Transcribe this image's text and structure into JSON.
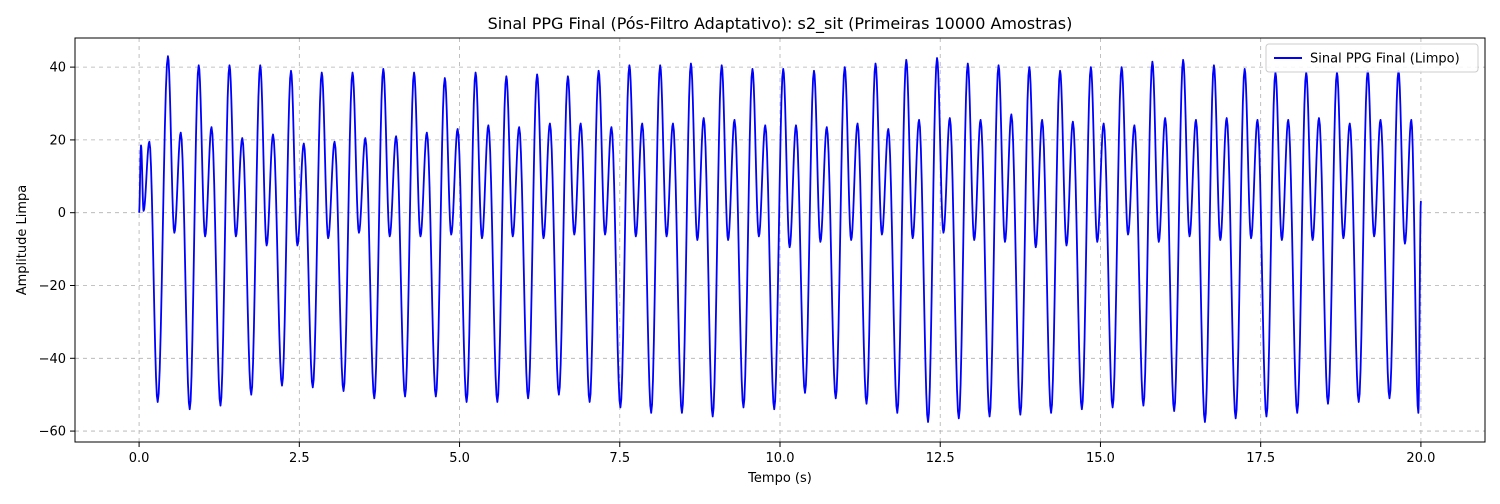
{
  "chart_data": {
    "type": "line",
    "title": "Sinal PPG Final (Pós-Filtro Adaptativo): s2_sit (Primeiras 10000 Amostras)",
    "xlabel": "Tempo (s)",
    "ylabel": "Amplitude Limpa",
    "xlim": [
      -1.0,
      21.0
    ],
    "ylim": [
      -63,
      48
    ],
    "grid": true,
    "legend_position": "top-right",
    "xticks": [
      0.0,
      2.5,
      5.0,
      7.5,
      10.0,
      12.5,
      15.0,
      17.5,
      20.0
    ],
    "xtick_labels": [
      "0.0",
      "2.5",
      "5.0",
      "7.5",
      "10.0",
      "12.5",
      "15.0",
      "17.5",
      "20.0"
    ],
    "yticks": [
      -60,
      -40,
      -20,
      0,
      20,
      40
    ],
    "ytick_labels": [
      "−60",
      "−40",
      "−20",
      "0",
      "20",
      "40"
    ],
    "series": [
      {
        "name": "Sinal PPG Final (Limpo)",
        "color": "#0000ff",
        "x_start": 0.0,
        "x_end": 20.0,
        "peaks": [
          {
            "t": 0.03,
            "v": 18.5
          },
          {
            "t": 0.16,
            "v": 19.5
          },
          {
            "t": 0.45,
            "v": 43.0
          },
          {
            "t": 0.65,
            "v": 22.0
          },
          {
            "t": 0.93,
            "v": 40.5
          },
          {
            "t": 1.13,
            "v": 23.5
          },
          {
            "t": 1.41,
            "v": 40.5
          },
          {
            "t": 1.61,
            "v": 20.5
          },
          {
            "t": 1.89,
            "v": 40.5
          },
          {
            "t": 2.09,
            "v": 21.5
          },
          {
            "t": 2.37,
            "v": 39.0
          },
          {
            "t": 2.57,
            "v": 19.0
          },
          {
            "t": 2.85,
            "v": 38.5
          },
          {
            "t": 3.05,
            "v": 19.5
          },
          {
            "t": 3.33,
            "v": 38.5
          },
          {
            "t": 3.53,
            "v": 20.5
          },
          {
            "t": 3.81,
            "v": 39.5
          },
          {
            "t": 4.01,
            "v": 21.0
          },
          {
            "t": 4.29,
            "v": 38.5
          },
          {
            "t": 4.49,
            "v": 22.0
          },
          {
            "t": 4.77,
            "v": 37.0
          },
          {
            "t": 4.97,
            "v": 23.0
          },
          {
            "t": 5.25,
            "v": 38.5
          },
          {
            "t": 5.45,
            "v": 24.0
          },
          {
            "t": 5.73,
            "v": 37.5
          },
          {
            "t": 5.93,
            "v": 23.5
          },
          {
            "t": 6.21,
            "v": 38.0
          },
          {
            "t": 6.41,
            "v": 24.5
          },
          {
            "t": 6.69,
            "v": 37.5
          },
          {
            "t": 6.89,
            "v": 24.5
          },
          {
            "t": 7.17,
            "v": 39.0
          },
          {
            "t": 7.37,
            "v": 23.5
          },
          {
            "t": 7.65,
            "v": 40.5
          },
          {
            "t": 7.85,
            "v": 24.5
          },
          {
            "t": 8.13,
            "v": 40.5
          },
          {
            "t": 8.33,
            "v": 24.5
          },
          {
            "t": 8.61,
            "v": 41.0
          },
          {
            "t": 8.81,
            "v": 26.0
          },
          {
            "t": 9.09,
            "v": 40.5
          },
          {
            "t": 9.29,
            "v": 25.5
          },
          {
            "t": 9.57,
            "v": 39.5
          },
          {
            "t": 9.77,
            "v": 24.0
          },
          {
            "t": 10.05,
            "v": 39.5
          },
          {
            "t": 10.25,
            "v": 24.0
          },
          {
            "t": 10.53,
            "v": 39.0
          },
          {
            "t": 10.73,
            "v": 23.5
          },
          {
            "t": 11.01,
            "v": 40.0
          },
          {
            "t": 11.21,
            "v": 24.5
          },
          {
            "t": 11.49,
            "v": 41.0
          },
          {
            "t": 11.69,
            "v": 23.0
          },
          {
            "t": 11.97,
            "v": 42.0
          },
          {
            "t": 12.17,
            "v": 25.5
          },
          {
            "t": 12.45,
            "v": 42.5
          },
          {
            "t": 12.65,
            "v": 26.0
          },
          {
            "t": 12.93,
            "v": 41.0
          },
          {
            "t": 13.13,
            "v": 25.5
          },
          {
            "t": 13.41,
            "v": 40.5
          },
          {
            "t": 13.61,
            "v": 27.0
          },
          {
            "t": 13.89,
            "v": 40.0
          },
          {
            "t": 14.09,
            "v": 25.5
          },
          {
            "t": 14.37,
            "v": 39.0
          },
          {
            "t": 14.57,
            "v": 25.0
          },
          {
            "t": 14.85,
            "v": 40.0
          },
          {
            "t": 15.05,
            "v": 24.5
          },
          {
            "t": 15.33,
            "v": 40.0
          },
          {
            "t": 15.53,
            "v": 24.0
          },
          {
            "t": 15.81,
            "v": 41.5
          },
          {
            "t": 16.01,
            "v": 26.0
          },
          {
            "t": 16.29,
            "v": 42.0
          },
          {
            "t": 16.49,
            "v": 25.5
          },
          {
            "t": 16.77,
            "v": 40.5
          },
          {
            "t": 16.97,
            "v": 26.0
          },
          {
            "t": 17.25,
            "v": 39.5
          },
          {
            "t": 17.45,
            "v": 25.5
          },
          {
            "t": 17.73,
            "v": 38.5
          },
          {
            "t": 17.93,
            "v": 25.5
          },
          {
            "t": 18.21,
            "v": 38.5
          },
          {
            "t": 18.41,
            "v": 26.0
          },
          {
            "t": 18.69,
            "v": 38.5
          },
          {
            "t": 18.89,
            "v": 24.5
          },
          {
            "t": 19.17,
            "v": 39.0
          },
          {
            "t": 19.37,
            "v": 25.5
          },
          {
            "t": 19.65,
            "v": 39.0
          },
          {
            "t": 19.85,
            "v": 25.5
          }
        ],
        "troughs": [
          {
            "t": 0.07,
            "v": 0.5
          },
          {
            "t": 0.29,
            "v": -52.0
          },
          {
            "t": 0.55,
            "v": -5.5
          },
          {
            "t": 0.79,
            "v": -54.0
          },
          {
            "t": 1.03,
            "v": -6.5
          },
          {
            "t": 1.27,
            "v": -53.0
          },
          {
            "t": 1.51,
            "v": -6.5
          },
          {
            "t": 1.75,
            "v": -50.0
          },
          {
            "t": 1.99,
            "v": -9.0
          },
          {
            "t": 2.23,
            "v": -47.5
          },
          {
            "t": 2.47,
            "v": -9.0
          },
          {
            "t": 2.71,
            "v": -48.0
          },
          {
            "t": 2.95,
            "v": -7.0
          },
          {
            "t": 3.19,
            "v": -49.0
          },
          {
            "t": 3.43,
            "v": -5.5
          },
          {
            "t": 3.67,
            "v": -51.0
          },
          {
            "t": 3.91,
            "v": -6.5
          },
          {
            "t": 4.15,
            "v": -50.5
          },
          {
            "t": 4.39,
            "v": -6.5
          },
          {
            "t": 4.63,
            "v": -50.5
          },
          {
            "t": 4.87,
            "v": -6.0
          },
          {
            "t": 5.11,
            "v": -52.0
          },
          {
            "t": 5.35,
            "v": -7.0
          },
          {
            "t": 5.59,
            "v": -52.0
          },
          {
            "t": 5.83,
            "v": -6.5
          },
          {
            "t": 6.07,
            "v": -51.0
          },
          {
            "t": 6.31,
            "v": -7.0
          },
          {
            "t": 6.55,
            "v": -50.0
          },
          {
            "t": 6.79,
            "v": -6.0
          },
          {
            "t": 7.03,
            "v": -52.0
          },
          {
            "t": 7.27,
            "v": -6.0
          },
          {
            "t": 7.51,
            "v": -53.5
          },
          {
            "t": 7.75,
            "v": -6.5
          },
          {
            "t": 7.99,
            "v": -55.0
          },
          {
            "t": 8.23,
            "v": -6.5
          },
          {
            "t": 8.47,
            "v": -55.0
          },
          {
            "t": 8.71,
            "v": -7.5
          },
          {
            "t": 8.95,
            "v": -56.0
          },
          {
            "t": 9.19,
            "v": -7.5
          },
          {
            "t": 9.43,
            "v": -53.5
          },
          {
            "t": 9.67,
            "v": -6.5
          },
          {
            "t": 9.91,
            "v": -54.0
          },
          {
            "t": 10.15,
            "v": -9.5
          },
          {
            "t": 10.39,
            "v": -49.5
          },
          {
            "t": 10.63,
            "v": -8.0
          },
          {
            "t": 10.87,
            "v": -51.0
          },
          {
            "t": 11.11,
            "v": -7.5
          },
          {
            "t": 11.35,
            "v": -52.5
          },
          {
            "t": 11.59,
            "v": -6.0
          },
          {
            "t": 11.83,
            "v": -55.0
          },
          {
            "t": 12.07,
            "v": -7.0
          },
          {
            "t": 12.31,
            "v": -57.5
          },
          {
            "t": 12.55,
            "v": -5.5
          },
          {
            "t": 12.79,
            "v": -56.5
          },
          {
            "t": 13.03,
            "v": -7.5
          },
          {
            "t": 13.27,
            "v": -56.0
          },
          {
            "t": 13.51,
            "v": -8.0
          },
          {
            "t": 13.75,
            "v": -55.5
          },
          {
            "t": 13.99,
            "v": -9.5
          },
          {
            "t": 14.23,
            "v": -55.0
          },
          {
            "t": 14.47,
            "v": -9.0
          },
          {
            "t": 14.71,
            "v": -54.0
          },
          {
            "t": 14.95,
            "v": -8.0
          },
          {
            "t": 15.19,
            "v": -53.5
          },
          {
            "t": 15.43,
            "v": -6.0
          },
          {
            "t": 15.67,
            "v": -53.0
          },
          {
            "t": 15.91,
            "v": -8.0
          },
          {
            "t": 16.15,
            "v": -54.5
          },
          {
            "t": 16.39,
            "v": -6.5
          },
          {
            "t": 16.63,
            "v": -57.5
          },
          {
            "t": 16.87,
            "v": -7.5
          },
          {
            "t": 17.11,
            "v": -56.5
          },
          {
            "t": 17.35,
            "v": -7.0
          },
          {
            "t": 17.59,
            "v": -56.0
          },
          {
            "t": 17.83,
            "v": -7.5
          },
          {
            "t": 18.07,
            "v": -55.0
          },
          {
            "t": 18.31,
            "v": -7.5
          },
          {
            "t": 18.55,
            "v": -52.5
          },
          {
            "t": 18.79,
            "v": -7.0
          },
          {
            "t": 19.03,
            "v": -52.0
          },
          {
            "t": 19.27,
            "v": -6.5
          },
          {
            "t": 19.51,
            "v": -51.0
          },
          {
            "t": 19.75,
            "v": -8.5
          },
          {
            "t": 19.96,
            "v": -55.0
          }
        ],
        "end_value": 3.2
      }
    ]
  }
}
